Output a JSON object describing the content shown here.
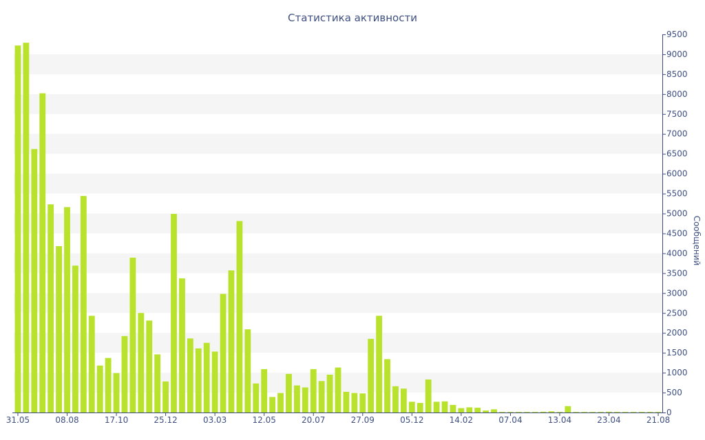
{
  "colors": {
    "bar": "#b8e22b",
    "band": "#f5f5f5",
    "axis": "#3a4780",
    "text": "#3e4f82"
  },
  "chart_data": {
    "type": "bar",
    "title": "Статистика активности",
    "ylabel": "Сообщений",
    "xlabel": "",
    "ylim": [
      0,
      9500
    ],
    "y_ticks": [
      0,
      500,
      1000,
      1500,
      2000,
      2500,
      3000,
      3500,
      4000,
      4500,
      5000,
      5500,
      6000,
      6500,
      7000,
      7500,
      8000,
      8500,
      9000,
      9500
    ],
    "y_axis_position": "right",
    "grid": "alternating horizontal bands",
    "legend": "none",
    "x_tick_labels": [
      "31.05",
      "08.08",
      "17.10",
      "25.12",
      "03.03",
      "12.05",
      "20.07",
      "27.09",
      "05.12",
      "14.02",
      "07.04",
      "13.04",
      "23.04",
      "21.08"
    ],
    "x_tick_label_bar_index": [
      0,
      6,
      12,
      18,
      24,
      30,
      36,
      42,
      48,
      54,
      60,
      66,
      72,
      78
    ],
    "values": [
      9220,
      9290,
      6620,
      8020,
      5230,
      4180,
      5160,
      3690,
      5440,
      2430,
      1180,
      1370,
      990,
      1920,
      3890,
      2500,
      2310,
      1460,
      780,
      4990,
      3370,
      1860,
      1610,
      1750,
      1530,
      2980,
      3570,
      4810,
      2090,
      730,
      1090,
      390,
      490,
      970,
      680,
      630,
      1090,
      790,
      950,
      1130,
      520,
      490,
      480,
      1850,
      2430,
      1340,
      660,
      600,
      270,
      240,
      830,
      270,
      280,
      190,
      110,
      130,
      120,
      50,
      80,
      15,
      15,
      15,
      15,
      15,
      20,
      30,
      15,
      160,
      15,
      15,
      15,
      15,
      20,
      15,
      15,
      15,
      15,
      15,
      15
    ]
  }
}
